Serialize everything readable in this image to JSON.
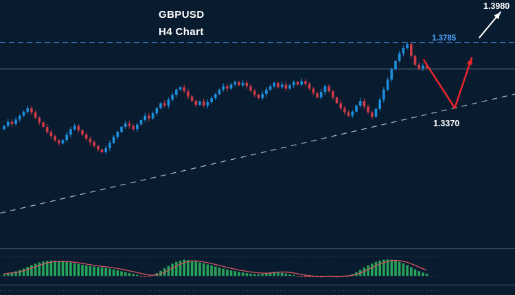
{
  "header": {
    "symbol": "GBPUSD",
    "timeframe": "H4 Chart"
  },
  "annotations": {
    "target_up": "1.3980",
    "resistance_label": "1.3785",
    "target_down": "1.3370"
  },
  "colors": {
    "background": "#091c2f",
    "candle_up": "#1e8fdc",
    "candle_down": "#cf3a46",
    "resistance_line": "#3f86d8",
    "resistance_text": "#4da3ff",
    "price_line": "#7a8b99",
    "trendline": "#cdd6de",
    "arrow_red": "#e8252d",
    "arrow_white": "#ffffff",
    "hist_up": "#27a35a",
    "hist_down": "#c94f4f",
    "signal_line": "#d95560",
    "panel_line": "#46545f",
    "dotted_line": "#5a6b7a",
    "label_text": "#ffffff"
  },
  "chart_data": {
    "type": "candlestick",
    "title": "GBPUSD H4 Chart",
    "ylim": [
      1.318,
      1.391
    ],
    "resistance_price": 1.3785,
    "current_price": 1.3706,
    "upside_target": 1.398,
    "downside_target": 1.337,
    "closes": [
      1.3538,
      1.355,
      1.3543,
      1.3557,
      1.3568,
      1.358,
      1.359,
      1.3578,
      1.3562,
      1.3548,
      1.3535,
      1.352,
      1.3508,
      1.3495,
      1.3486,
      1.3496,
      1.3512,
      1.3528,
      1.3538,
      1.3525,
      1.3512,
      1.35,
      1.349,
      1.3478,
      1.3468,
      1.346,
      1.3472,
      1.3488,
      1.3505,
      1.352,
      1.3535,
      1.3545,
      1.3538,
      1.3528,
      1.3542,
      1.3555,
      1.3568,
      1.356,
      1.3575,
      1.359,
      1.3605,
      1.3598,
      1.3615,
      1.363,
      1.3645,
      1.3652,
      1.364,
      1.3625,
      1.3612,
      1.36,
      1.361,
      1.3598,
      1.3608,
      1.362,
      1.3632,
      1.3645,
      1.3655,
      1.3648,
      1.366,
      1.3668,
      1.3658,
      1.3665,
      1.3655,
      1.3642,
      1.363,
      1.362,
      1.3632,
      1.3645,
      1.3655,
      1.3665,
      1.3652,
      1.366,
      1.3648,
      1.3658,
      1.3668,
      1.366,
      1.367,
      1.3662,
      1.3648,
      1.3635,
      1.3622,
      1.3638,
      1.3655,
      1.364,
      1.3622,
      1.3605,
      1.359,
      1.3578,
      1.3568,
      1.358,
      1.3598,
      1.3612,
      1.3595,
      1.3578,
      1.3565,
      1.3588,
      1.3615,
      1.3645,
      1.3675,
      1.3705,
      1.373,
      1.3752,
      1.3768,
      1.378,
      1.3745,
      1.3718,
      1.3708,
      1.3716,
      1.3709
    ],
    "indicator": {
      "type": "macd-histogram",
      "values": [
        0.08,
        0.12,
        0.18,
        0.25,
        0.32,
        0.4,
        0.5,
        0.6,
        0.68,
        0.75,
        0.8,
        0.83,
        0.85,
        0.84,
        0.82,
        0.8,
        0.78,
        0.75,
        0.7,
        0.66,
        0.62,
        0.58,
        0.55,
        0.52,
        0.5,
        0.47,
        0.44,
        0.4,
        0.36,
        0.3,
        0.25,
        0.2,
        0.15,
        0.1,
        0.06,
        -0.05,
        -0.08,
        -0.06,
        0.05,
        0.15,
        0.28,
        0.42,
        0.55,
        0.68,
        0.78,
        0.85,
        0.9,
        0.88,
        0.84,
        0.8,
        0.75,
        0.7,
        0.64,
        0.58,
        0.52,
        0.46,
        0.4,
        0.35,
        0.3,
        0.26,
        0.22,
        0.18,
        0.15,
        0.12,
        0.1,
        0.08,
        0.1,
        0.14,
        0.18,
        0.22,
        0.2,
        0.16,
        0.12,
        0.08,
        0.04,
        -0.04,
        -0.07,
        -0.09,
        -0.08,
        -0.06,
        -0.08,
        -0.1,
        -0.07,
        -0.05,
        -0.08,
        -0.1,
        -0.07,
        -0.04,
        0.03,
        0.1,
        0.2,
        0.32,
        0.45,
        0.58,
        0.68,
        0.78,
        0.85,
        0.9,
        0.92,
        0.9,
        0.85,
        0.78,
        0.7,
        0.6,
        0.48,
        0.36,
        0.26,
        0.18,
        0.12
      ]
    },
    "trendline": {
      "p1": {
        "x_frac": 0.0,
        "price": 1.328
      },
      "p2": {
        "x_frac": 1.0,
        "price": 1.3632
      }
    },
    "projection_arrow_red_frac": [
      [
        0.823,
        0.204
      ],
      [
        0.883,
        0.366
      ],
      [
        0.916,
        0.196
      ]
    ],
    "breakout_arrow_white_frac": [
      [
        0.931,
        0.127
      ],
      [
        0.972,
        0.041
      ]
    ]
  }
}
